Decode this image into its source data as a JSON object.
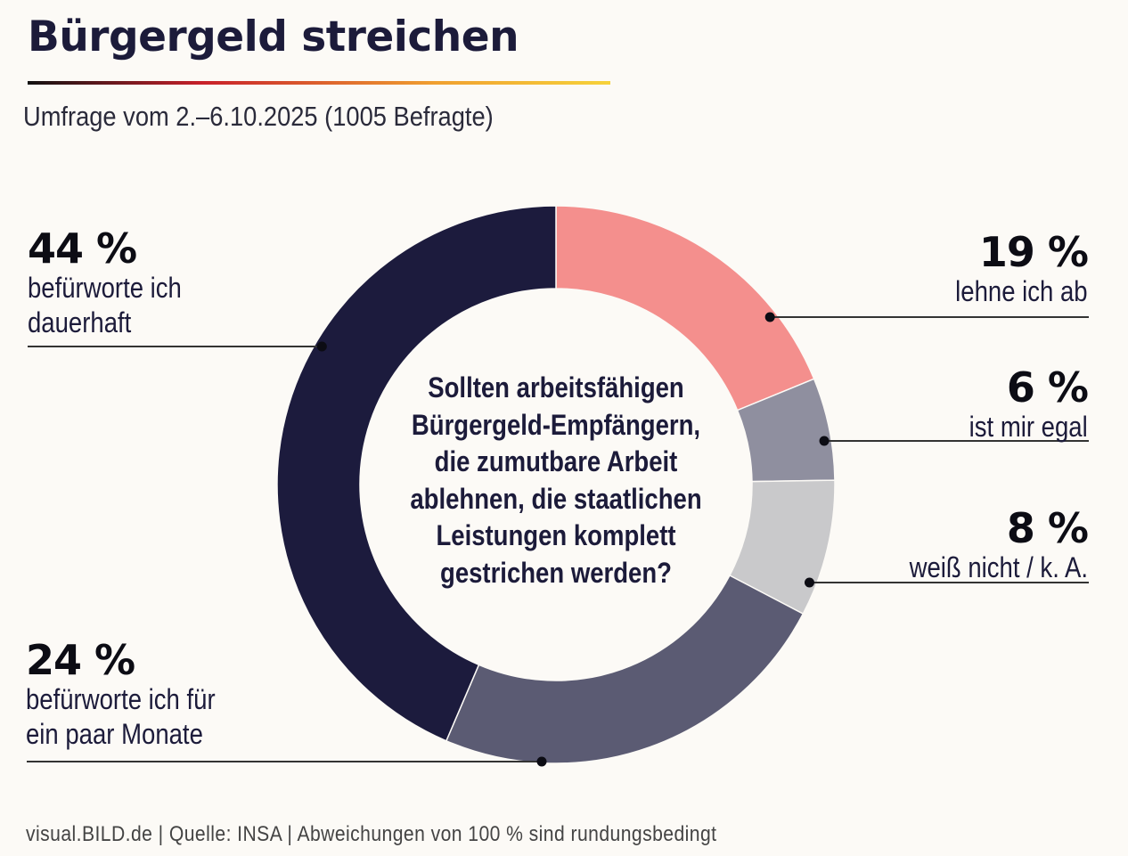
{
  "header": {
    "title": "Bürgergeld streichen",
    "subtitle": "Umfrage vom 2.–6.10.2025 (1005 Befragte)"
  },
  "question": "Sollten arbeitsfähigen Bürgergeld-Empfängern, die zumutbare Arbeit ablehnen, die staatlichen Leistungen komplett gestrichen werden?",
  "footer": "visual.BILD.de | Quelle: INSA | Abweichungen von 100 % sind rundungsbedingt",
  "chart_data": {
    "type": "pie",
    "variant": "donut",
    "title": "Bürgergeld streichen",
    "subtitle": "Umfrage vom 2.–6.10.2025 (1005 Befragte)",
    "center_text": "Sollten arbeitsfähigen Bürgergeld-Empfängern, die zumutbare Arbeit ablehnen, die staatlichen Leistungen komplett gestrichen werden?",
    "start": "top",
    "direction": "clockwise",
    "unit": "%",
    "slices": [
      {
        "key": "reject",
        "label": "lehne ich ab",
        "value": 19,
        "display": "19 %",
        "color": "#f48f8d"
      },
      {
        "key": "indifferent",
        "label": "ist mir egal",
        "value": 6,
        "display": "6 %",
        "color": "#8f8f9f"
      },
      {
        "key": "dontknow",
        "label": "weiß nicht / k. A.",
        "value": 8,
        "display": "8 %",
        "color": "#c9c9cb"
      },
      {
        "key": "months",
        "label": "befürworte ich für ein paar Monate",
        "value": 24,
        "display": "24 %",
        "color": "#5b5b73"
      },
      {
        "key": "permanent",
        "label": "befürworte ich dauerhaft",
        "value": 44,
        "display": "44 %",
        "color": "#1c1b3d"
      }
    ],
    "note": "Abweichungen von 100 % sind rundungsbedingt"
  }
}
